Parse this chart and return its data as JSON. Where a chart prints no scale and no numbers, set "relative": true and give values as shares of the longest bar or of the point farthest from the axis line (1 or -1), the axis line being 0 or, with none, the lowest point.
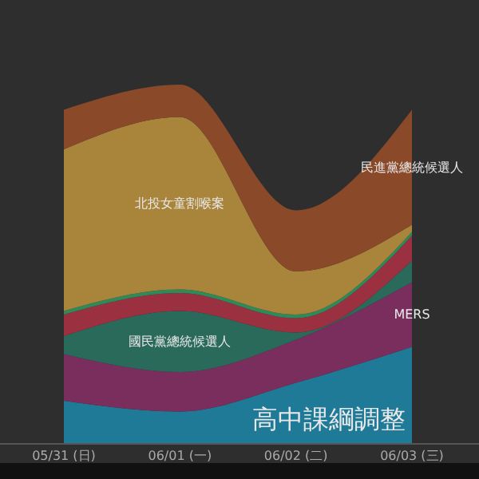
{
  "chart_data": {
    "type": "area",
    "stacked": true,
    "relative": true,
    "categories": [
      "05/31 (日)",
      "06/01 (一)",
      "06/02 (二)",
      "06/03 (三)"
    ],
    "series": [
      {
        "name": "高中課綱調整",
        "color": "#1e7a96",
        "values": [
          0.12,
          0.09,
          0.17,
          0.27
        ]
      },
      {
        "name": "MERS",
        "color": "#7a2e5e",
        "values": [
          0.13,
          0.11,
          0.12,
          0.18
        ]
      },
      {
        "name": "國民黨總統候選人",
        "color": "#2a6a5a",
        "values": [
          0.05,
          0.17,
          0.02,
          0.06
        ]
      },
      {
        "color": "#9a3040",
        "values": [
          0.06,
          0.05,
          0.04,
          0.07
        ]
      },
      {
        "color": "#2f8a5a",
        "values": [
          0.01,
          0.01,
          0.01,
          0.01
        ]
      },
      {
        "name": "北投女童割喉案",
        "color": "#a8853a",
        "values": [
          0.45,
          0.48,
          0.12,
          0.02
        ]
      },
      {
        "name": "民進黨總統候選人",
        "color": "#8a4a2a",
        "values": [
          0.11,
          0.09,
          0.17,
          0.32
        ]
      }
    ]
  }
}
